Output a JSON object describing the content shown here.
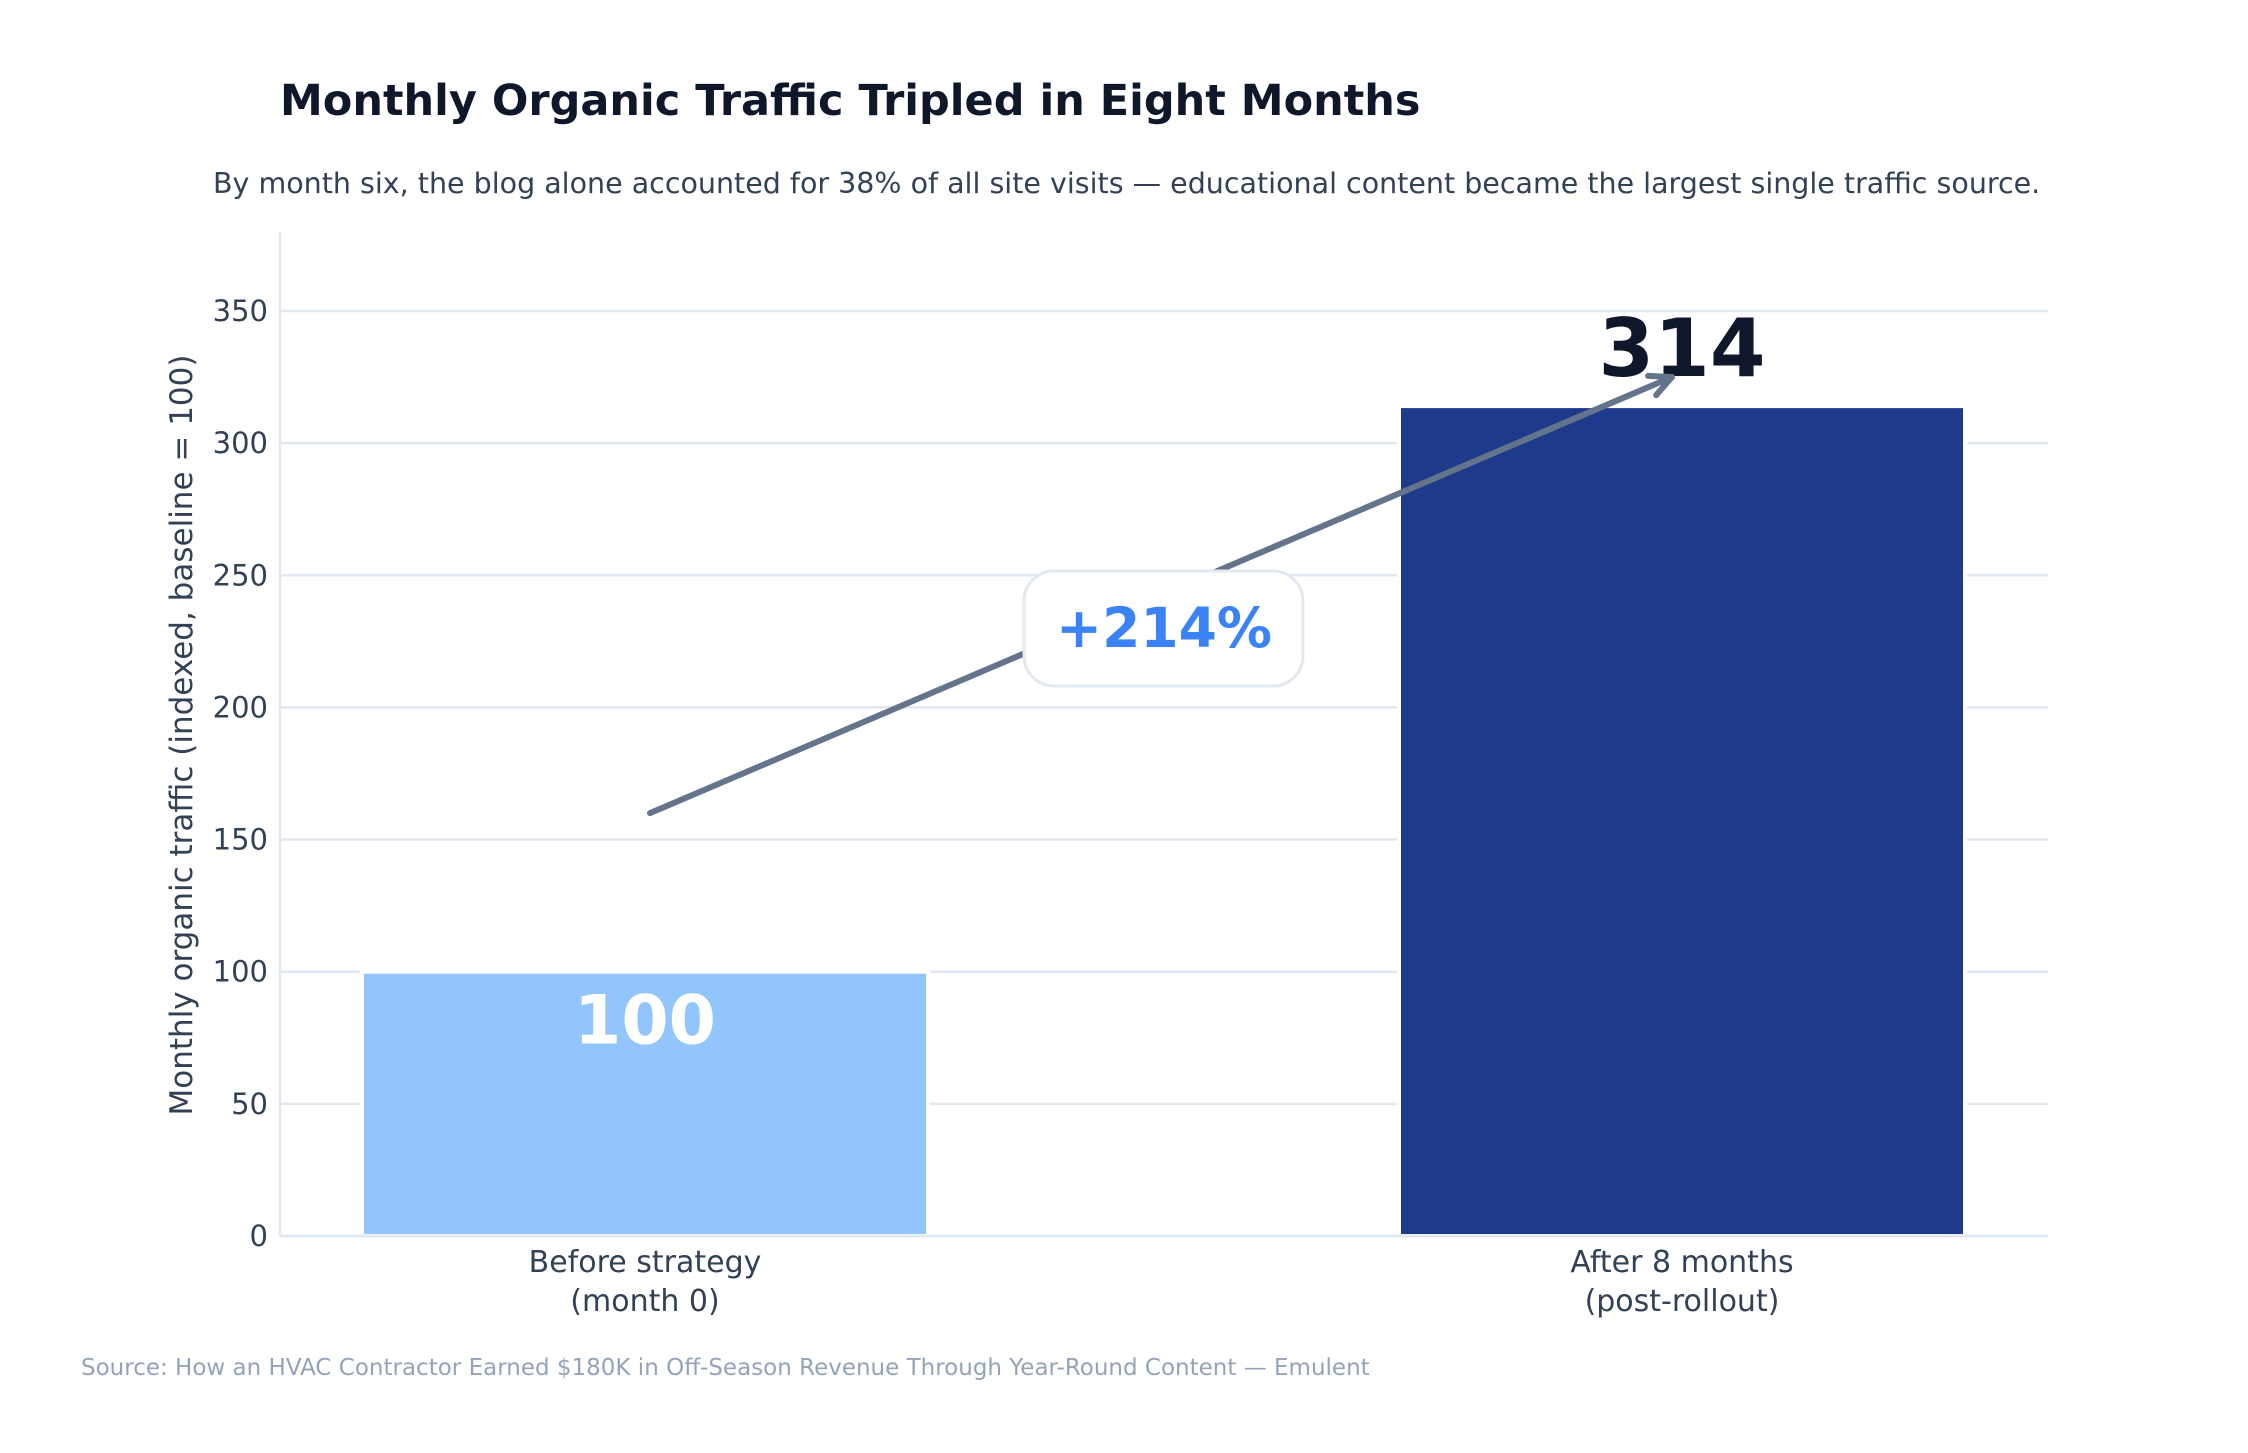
{
  "chart_data": {
    "type": "bar",
    "title": "Monthly Organic Traffic Tripled in Eight Months",
    "subtitle": "By month six, the blog alone accounted for 38% of all site visits — educational content became the largest single traffic source.",
    "xlabel": "",
    "ylabel": "Monthly organic traffic (indexed, baseline = 100)",
    "categories": [
      [
        "Before strategy",
        "(month 0)"
      ],
      [
        "After 8 months",
        "(post-rollout)"
      ]
    ],
    "values": [
      100,
      314
    ],
    "data_labels": [
      "100",
      "314"
    ],
    "ylim": [
      0,
      380
    ],
    "yticks": [
      0,
      50,
      100,
      150,
      200,
      250,
      300,
      350
    ],
    "grid": true,
    "annotation": {
      "text": "+214%",
      "from": [
        0,
        160
      ],
      "to": [
        1,
        325
      ]
    },
    "source": "Source: How an HVAC Contractor Earned $180K in Off-Season Revenue Through Year-Round Content — Emulent",
    "colors": {
      "bars": [
        "#93c5fd",
        "#1e3a8a"
      ],
      "grid": "#e2e8f0",
      "title": "#0f172a",
      "text": "#334155",
      "source": "#94a3b8",
      "arrow": "#64748b",
      "annotation": "#3b82f6"
    }
  }
}
